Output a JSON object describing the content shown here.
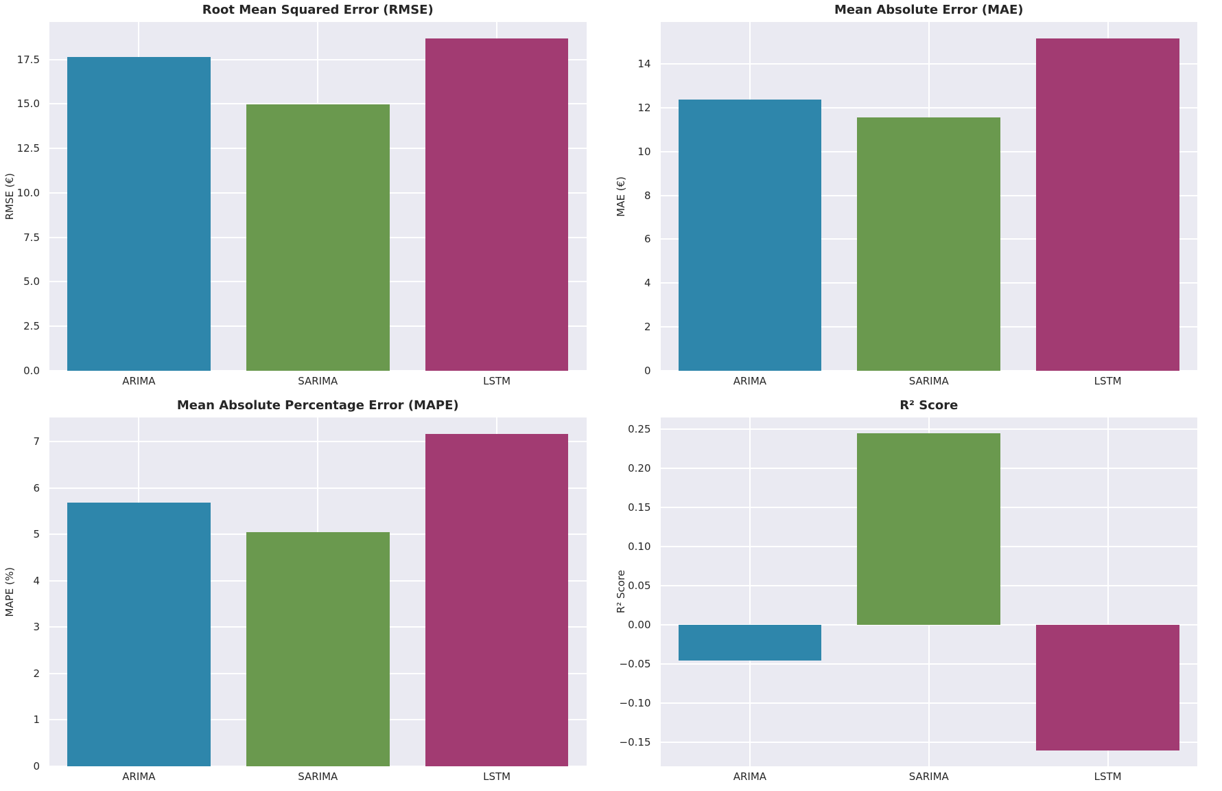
{
  "figure": {
    "background": "#FFFFFF",
    "plot_background": "#EAEAF2",
    "grid_color": "#FFFFFF",
    "text_color": "#262626",
    "bar_colors": [
      "#2E86AB",
      "#6A994E",
      "#A23B72"
    ]
  },
  "models": [
    "ARIMA",
    "SARIMA",
    "LSTM"
  ],
  "chart_data": [
    {
      "type": "bar",
      "title": "Root Mean Squared Error (RMSE)",
      "xlabel": "",
      "ylabel": "RMSE (€)",
      "categories": [
        "ARIMA",
        "SARIMA",
        "LSTM"
      ],
      "values": [
        17.65,
        14.98,
        18.68
      ],
      "ylim": [
        0,
        19.61
      ],
      "grid": true,
      "legend": "none",
      "yticks": [
        {
          "value": 0.0,
          "label": "0.0"
        },
        {
          "value": 2.5,
          "label": "2.5"
        },
        {
          "value": 5.0,
          "label": "5.0"
        },
        {
          "value": 7.5,
          "label": "7.5"
        },
        {
          "value": 10.0,
          "label": "10.0"
        },
        {
          "value": 12.5,
          "label": "12.5"
        },
        {
          "value": 15.0,
          "label": "15.0"
        },
        {
          "value": 17.5,
          "label": "17.5"
        }
      ]
    },
    {
      "type": "bar",
      "title": "Mean Absolute Error (MAE)",
      "xlabel": "",
      "ylabel": "MAE (€)",
      "categories": [
        "ARIMA",
        "SARIMA",
        "LSTM"
      ],
      "values": [
        12.37,
        11.55,
        15.15
      ],
      "ylim": [
        0,
        15.91
      ],
      "grid": true,
      "legend": "none",
      "yticks": [
        {
          "value": 0,
          "label": "0"
        },
        {
          "value": 2,
          "label": "2"
        },
        {
          "value": 4,
          "label": "4"
        },
        {
          "value": 6,
          "label": "6"
        },
        {
          "value": 8,
          "label": "8"
        },
        {
          "value": 10,
          "label": "10"
        },
        {
          "value": 12,
          "label": "12"
        },
        {
          "value": 14,
          "label": "14"
        }
      ]
    },
    {
      "type": "bar",
      "title": "Mean Absolute Percentage Error (MAPE)",
      "xlabel": "",
      "ylabel": "MAPE (%)",
      "categories": [
        "ARIMA",
        "SARIMA",
        "LSTM"
      ],
      "values": [
        5.69,
        5.05,
        7.16
      ],
      "ylim": [
        0,
        7.52
      ],
      "grid": true,
      "legend": "none",
      "yticks": [
        {
          "value": 0,
          "label": "0"
        },
        {
          "value": 1,
          "label": "1"
        },
        {
          "value": 2,
          "label": "2"
        },
        {
          "value": 3,
          "label": "3"
        },
        {
          "value": 4,
          "label": "4"
        },
        {
          "value": 5,
          "label": "5"
        },
        {
          "value": 6,
          "label": "6"
        },
        {
          "value": 7,
          "label": "7"
        }
      ]
    },
    {
      "type": "bar",
      "title": "R² Score",
      "xlabel": "",
      "ylabel": "R² Score",
      "categories": [
        "ARIMA",
        "SARIMA",
        "LSTM"
      ],
      "values": [
        -0.046,
        0.245,
        -0.161
      ],
      "ylim": [
        -0.181,
        0.265
      ],
      "grid": true,
      "legend": "none",
      "yticks": [
        {
          "value": -0.15,
          "label": "−0.15"
        },
        {
          "value": -0.1,
          "label": "−0.10"
        },
        {
          "value": -0.05,
          "label": "−0.05"
        },
        {
          "value": 0.0,
          "label": "0.00"
        },
        {
          "value": 0.05,
          "label": "0.05"
        },
        {
          "value": 0.1,
          "label": "0.10"
        },
        {
          "value": 0.15,
          "label": "0.15"
        },
        {
          "value": 0.2,
          "label": "0.20"
        },
        {
          "value": 0.25,
          "label": "0.25"
        }
      ]
    }
  ]
}
